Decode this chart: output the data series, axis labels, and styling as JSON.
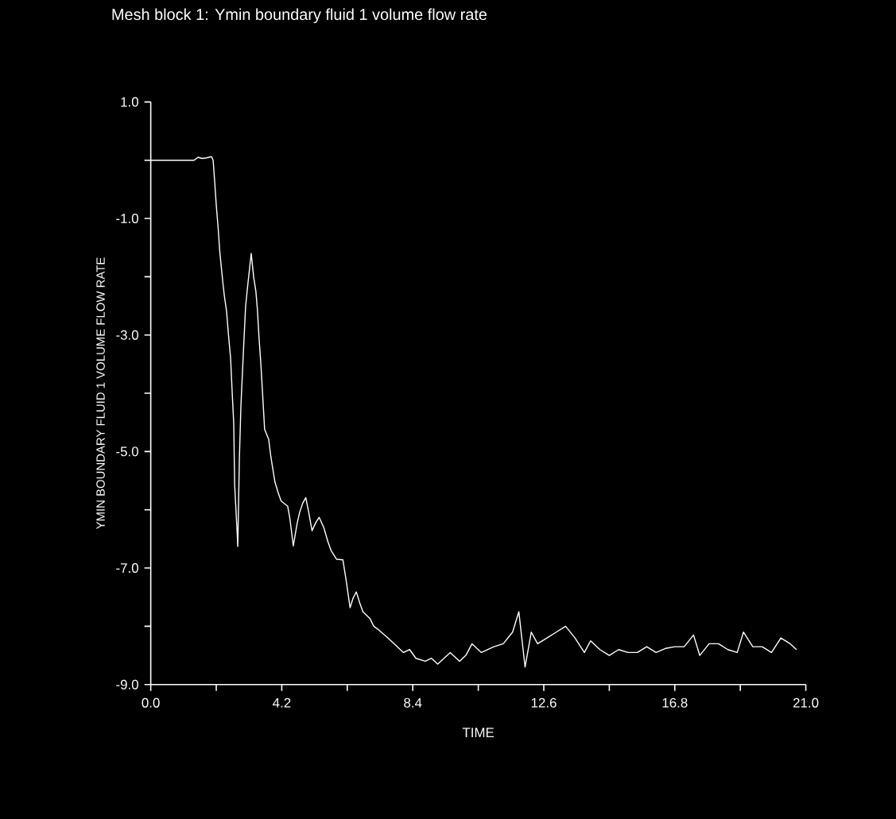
{
  "chart_data": {
    "type": "line",
    "title": "Mesh block 1: Ymin boundary fluid 1 volume flow rate",
    "xlabel": "TIME",
    "ylabel": "YMIN BOUNDARY FLUID 1 VOLUME FLOW RATE",
    "x": [
      0,
      1.39,
      1.52,
      1.65,
      1.78,
      1.95,
      2.0,
      2.05,
      2.1,
      2.16,
      2.21,
      2.26,
      2.31,
      2.36,
      2.43,
      2.49,
      2.56,
      2.61,
      2.66,
      2.69,
      2.76,
      2.79,
      2.84,
      2.89,
      2.97,
      3.04,
      3.12,
      3.17,
      3.22,
      3.3,
      3.37,
      3.42,
      3.47,
      3.53,
      3.58,
      3.65,
      3.78,
      3.85,
      3.98,
      4.08,
      4.18,
      4.39,
      4.46,
      4.57,
      4.69,
      4.77,
      4.87,
      4.97,
      5.07,
      5.17,
      5.3,
      5.4,
      5.55,
      5.68,
      5.78,
      5.96,
      6.16,
      6.26,
      6.39,
      6.49,
      6.59,
      6.7,
      6.8,
      7.03,
      7.15,
      7.28,
      7.6,
      7.9,
      8.1,
      8.3,
      8.5,
      8.8,
      9.0,
      9.2,
      9.4,
      9.6,
      9.9,
      10.1,
      10.3,
      10.6,
      11.0,
      11.3,
      11.6,
      11.8,
      12.0,
      12.2,
      12.4,
      12.7,
      13.0,
      13.3,
      13.6,
      13.9,
      14.1,
      14.4,
      14.7,
      15.0,
      15.3,
      15.6,
      15.9,
      16.2,
      16.5,
      16.8,
      17.1,
      17.4,
      17.6,
      17.9,
      18.2,
      18.5,
      18.8,
      19.0,
      19.3,
      19.6,
      19.9,
      20.2,
      20.5,
      20.7
    ],
    "values": [
      0.0,
      0.0,
      0.05,
      0.03,
      0.04,
      0.06,
      0.0,
      -0.37,
      -0.77,
      -1.16,
      -1.55,
      -1.83,
      -2.09,
      -2.33,
      -2.59,
      -2.99,
      -3.4,
      -3.98,
      -4.52,
      -5.58,
      -6.29,
      -6.63,
      -5.15,
      -4.22,
      -3.29,
      -2.51,
      -2.09,
      -1.85,
      -1.6,
      -2.01,
      -2.25,
      -2.57,
      -3.04,
      -3.5,
      -3.96,
      -4.62,
      -4.79,
      -5.09,
      -5.52,
      -5.7,
      -5.85,
      -5.94,
      -6.15,
      -6.62,
      -6.24,
      -6.05,
      -5.89,
      -5.79,
      -6.06,
      -6.36,
      -6.21,
      -6.13,
      -6.31,
      -6.55,
      -6.7,
      -6.85,
      -6.86,
      -7.2,
      -7.68,
      -7.51,
      -7.41,
      -7.6,
      -7.75,
      -7.87,
      -8.0,
      -8.05,
      -8.2,
      -8.35,
      -8.45,
      -8.4,
      -8.55,
      -8.6,
      -8.55,
      -8.65,
      -8.55,
      -8.45,
      -8.6,
      -8.5,
      -8.3,
      -8.45,
      -8.35,
      -8.3,
      -8.1,
      -7.75,
      -8.7,
      -8.1,
      -8.3,
      -8.2,
      -8.1,
      -8.0,
      -8.2,
      -8.45,
      -8.25,
      -8.4,
      -8.5,
      -8.4,
      -8.45,
      -8.45,
      -8.35,
      -8.45,
      -8.38,
      -8.35,
      -8.35,
      -8.15,
      -8.5,
      -8.3,
      -8.3,
      -8.4,
      -8.45,
      -8.1,
      -8.35,
      -8.35,
      -8.45,
      -8.2,
      -8.3,
      -8.4
    ],
    "color": "#ffffff",
    "marker": "none",
    "line_style": "solid",
    "xlim": [
      0,
      21.0
    ],
    "ylim": [
      -9.0,
      1.0
    ],
    "xticks": [
      {
        "value": 0,
        "label": "0.0"
      },
      {
        "value": 2.1,
        "label": null
      },
      {
        "value": 4.2,
        "label": "4.2"
      },
      {
        "value": 6.3,
        "label": null
      },
      {
        "value": 8.4,
        "label": "8.4"
      },
      {
        "value": 10.5,
        "label": null
      },
      {
        "value": 12.6,
        "label": "12.6"
      },
      {
        "value": 14.7,
        "label": null
      },
      {
        "value": 16.8,
        "label": "16.8"
      },
      {
        "value": 18.9,
        "label": null
      },
      {
        "value": 21.0,
        "label": "21.0"
      }
    ],
    "yticks": [
      {
        "value": 1,
        "label": "1.0"
      },
      {
        "value": 0,
        "label": null
      },
      {
        "value": -1,
        "label": "-1.0"
      },
      {
        "value": -2,
        "label": null
      },
      {
        "value": -3,
        "label": "-3.0"
      },
      {
        "value": -4,
        "label": null
      },
      {
        "value": -5,
        "label": "-5.0"
      },
      {
        "value": -6,
        "label": null
      },
      {
        "value": -7,
        "label": "-7.0"
      },
      {
        "value": -8,
        "label": null
      },
      {
        "value": -9,
        "label": "-9.0"
      }
    ]
  }
}
